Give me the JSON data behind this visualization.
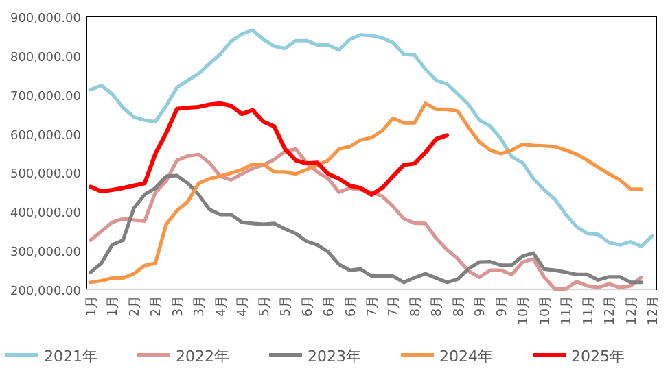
{
  "chart_data": {
    "type": "line",
    "categories": [
      "1月",
      null,
      "1月",
      null,
      "2月",
      null,
      "2月",
      null,
      "3月",
      null,
      "3月",
      null,
      "4月",
      null,
      "4月",
      null,
      "5月",
      null,
      "5月",
      null,
      "6月",
      null,
      "6月",
      null,
      "6月",
      null,
      "7月",
      null,
      "7月",
      null,
      "8月",
      null,
      "8月",
      null,
      "8月",
      null,
      "9月",
      null,
      "9月",
      null,
      "10月",
      null,
      "10月",
      null,
      "11月",
      null,
      "11月",
      null,
      "12月",
      null,
      "12月",
      null,
      "12月"
    ],
    "ylim": [
      200000,
      900000
    ],
    "yticks": [
      {
        "value": 200000,
        "label": "200,000.00"
      },
      {
        "value": 300000,
        "label": "300,000.00"
      },
      {
        "value": 400000,
        "label": "400,000.00"
      },
      {
        "value": 500000,
        "label": "500,000.00"
      },
      {
        "value": 600000,
        "label": "600,000.00"
      },
      {
        "value": 700000,
        "label": "700,000.00"
      },
      {
        "value": 800000,
        "label": "800,000.00"
      },
      {
        "value": 900000,
        "label": "900,000.00"
      }
    ],
    "legend": "bottom",
    "series": [
      {
        "name": "2021年",
        "color": "#92cddc",
        "values": [
          712000,
          723000,
          701000,
          666000,
          642000,
          634000,
          630000,
          671000,
          718000,
          736000,
          753000,
          779000,
          803000,
          836000,
          855000,
          865000,
          841000,
          824000,
          818000,
          838000,
          838000,
          827000,
          827000,
          814000,
          841000,
          853000,
          851000,
          845000,
          833000,
          803000,
          801000,
          765000,
          736000,
          727000,
          701000,
          674000,
          634000,
          619000,
          586000,
          540000,
          525000,
          484000,
          455000,
          431000,
          392000,
          361000,
          343000,
          341000,
          320000,
          314000,
          322000,
          310000,
          337000
        ]
      },
      {
        "name": "2022年",
        "color": "#da9694",
        "values": [
          326000,
          349000,
          372000,
          381000,
          378000,
          375000,
          449000,
          478000,
          531000,
          542000,
          546000,
          525000,
          490000,
          481000,
          496000,
          510000,
          519000,
          533000,
          554000,
          560000,
          525000,
          501000,
          484000,
          449000,
          460000,
          455000,
          449000,
          439000,
          413000,
          381000,
          370000,
          369000,
          331000,
          302000,
          278000,
          247000,
          231000,
          249000,
          249000,
          238000,
          270000,
          278000,
          231000,
          201000,
          201000,
          220000,
          209000,
          205000,
          214000,
          205000,
          209000,
          231000,
          null
        ]
      },
      {
        "name": "2023年",
        "color": "#808080",
        "values": [
          244000,
          267000,
          314000,
          326000,
          408000,
          443000,
          460000,
          490000,
          492000,
          472000,
          443000,
          405000,
          392000,
          392000,
          372000,
          369000,
          367000,
          369000,
          355000,
          343000,
          323000,
          314000,
          296000,
          264000,
          249000,
          252000,
          234000,
          234000,
          234000,
          218000,
          230000,
          240000,
          229000,
          218000,
          226000,
          253000,
          270000,
          271000,
          262000,
          262000,
          285000,
          293000,
          252000,
          249000,
          244000,
          238000,
          238000,
          224000,
          232000,
          232000,
          218000,
          218000,
          null
        ]
      },
      {
        "name": "2024年",
        "color": "#f79646",
        "values": [
          218000,
          222000,
          229000,
          229000,
          240000,
          261000,
          267000,
          367000,
          402000,
          425000,
          472000,
          484000,
          490000,
          498000,
          507000,
          521000,
          521000,
          501000,
          501000,
          496000,
          507000,
          519000,
          531000,
          560000,
          566000,
          583000,
          589000,
          607000,
          639000,
          627000,
          627000,
          677000,
          662000,
          662000,
          657000,
          615000,
          578000,
          557000,
          548000,
          557000,
          572000,
          569000,
          568000,
          566000,
          557000,
          547000,
          531000,
          513000,
          496000,
          481000,
          457000,
          457000,
          null
        ]
      },
      {
        "name": "2025年",
        "color": "#ff0000",
        "values": [
          463000,
          451000,
          455000,
          460000,
          466000,
          472000,
          548000,
          601000,
          663000,
          666000,
          668000,
          674000,
          677000,
          671000,
          650000,
          660000,
          630000,
          618000,
          560000,
          531000,
          523000,
          525000,
          496000,
          484000,
          466000,
          460000,
          443000,
          460000,
          490000,
          519000,
          523000,
          551000,
          586000,
          595000,
          null,
          null,
          null,
          null,
          null,
          null,
          null,
          null,
          null,
          null,
          null,
          null,
          null,
          null,
          null,
          null,
          null,
          null,
          null
        ]
      }
    ]
  }
}
